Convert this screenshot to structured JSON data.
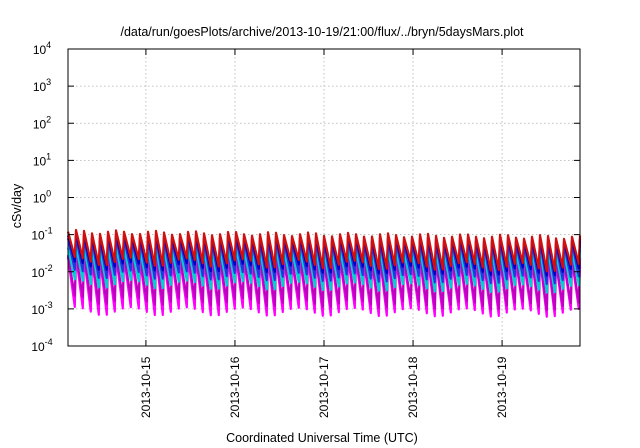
{
  "chart_data": {
    "type": "line",
    "title": "/data/run/goesPlots/archive/2013-10-19/21:00/flux/../bryn/5daysMars.plot",
    "xlabel": "Coordinated Universal Time (UTC)",
    "ylabel": "cSv/day",
    "yscale": "log",
    "ylim": [
      0.0001,
      10000
    ],
    "xlim": [
      "2013-10-14T03:00",
      "2013-10-19T21:00"
    ],
    "x_ticks": [
      "2013-10-15",
      "2013-10-16",
      "2013-10-17",
      "2013-10-18",
      "2013-10-19"
    ],
    "y_ticks": [
      {
        "mantissa": "10",
        "exp": "-4"
      },
      {
        "mantissa": "10",
        "exp": "-3"
      },
      {
        "mantissa": "10",
        "exp": "-2"
      },
      {
        "mantissa": "10",
        "exp": "-1"
      },
      {
        "mantissa": "10",
        "exp": "0"
      },
      {
        "mantissa": "10",
        "exp": "1"
      },
      {
        "mantissa": "10",
        "exp": "2"
      },
      {
        "mantissa": "10",
        "exp": "3"
      },
      {
        "mantissa": "10",
        "exp": "4"
      }
    ],
    "grid": true,
    "sawtooth_cycles": 64,
    "colors": [
      "#ff00ff",
      "#c000c0",
      "#00ced1",
      "#3030e0",
      "#0000c0",
      "#d01010"
    ],
    "series": [
      {
        "color": "#ff00ff",
        "peak_start": 0.025,
        "peak_end": 0.02,
        "trough_start": 0.0009,
        "trough_end": 0.0008
      },
      {
        "color": "#c000c0",
        "peak_start": 0.028,
        "peak_end": 0.022,
        "trough_start": 0.0018,
        "trough_end": 0.0012
      },
      {
        "color": "#00ced1",
        "peak_start": 0.045,
        "peak_end": 0.035,
        "trough_start": 0.005,
        "trough_end": 0.0035
      },
      {
        "color": "#3030e0",
        "peak_start": 0.08,
        "peak_end": 0.06,
        "trough_start": 0.009,
        "trough_end": 0.006
      },
      {
        "color": "#0000c0",
        "peak_start": 0.095,
        "peak_end": 0.07,
        "trough_start": 0.015,
        "trough_end": 0.01
      },
      {
        "color": "#d01010",
        "peak_start": 0.12,
        "peak_end": 0.085,
        "trough_start": 0.02,
        "trough_end": 0.013
      }
    ]
  }
}
